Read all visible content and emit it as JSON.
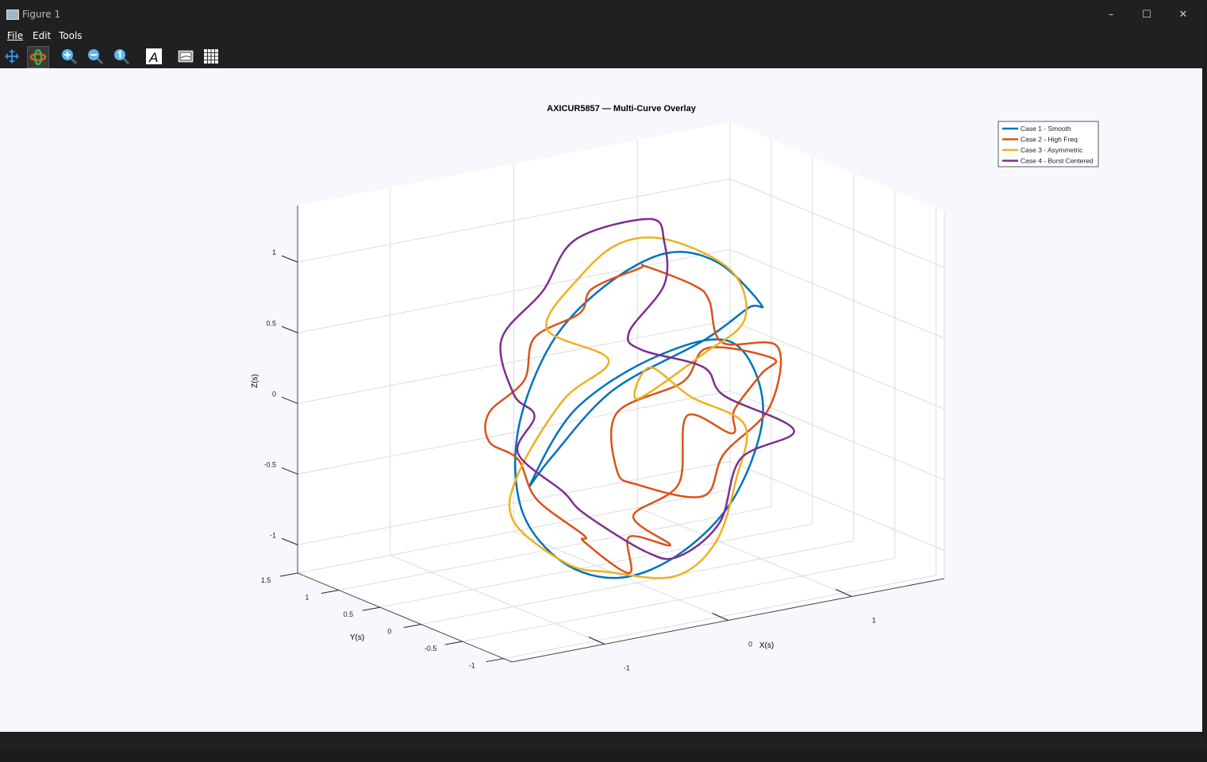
{
  "window": {
    "title": "Figure 1",
    "controls": [
      "minimize",
      "maximize",
      "close"
    ]
  },
  "menu": [
    "File",
    "Edit",
    "Tools"
  ],
  "toolbar": [
    {
      "name": "pan-icon",
      "active": false
    },
    {
      "name": "rotate-3d-icon",
      "active": true
    },
    {
      "name": "zoom-in-icon",
      "active": false
    },
    {
      "name": "zoom-out-icon",
      "active": false
    },
    {
      "name": "zoom-reset-icon",
      "active": false
    },
    {
      "name": "text-annotation-icon",
      "active": false
    },
    {
      "name": "legend-toggle-icon",
      "active": false
    },
    {
      "name": "grid-toggle-icon",
      "active": false
    }
  ],
  "chart_data": {
    "type": "line3d",
    "title": "AXICUR5857 — Multi-Curve Overlay",
    "xlabel": "X(s)",
    "ylabel": "Y(s)",
    "zlabel": "Z(s)",
    "xlim": [
      -1.75,
      1.75
    ],
    "ylim": [
      -1.1,
      1.5
    ],
    "zlim": [
      -1.2,
      1.4
    ],
    "xticks": [
      -1,
      0,
      1
    ],
    "yticks": [
      -1,
      -0.5,
      0,
      0.5,
      1,
      1.5
    ],
    "zticks": [
      -1,
      -0.5,
      0,
      0.5,
      1
    ],
    "xtick_labels": [
      "-1",
      "0",
      "1"
    ],
    "ytick_labels": [
      "-1",
      "-0.5",
      "0",
      "0.5",
      "1",
      "1.5"
    ],
    "ztick_labels": [
      "-1",
      "-0.5",
      "0",
      "0.5",
      "1"
    ],
    "grid": true,
    "legend_placement": "top-right",
    "series": [
      {
        "name": "Case 1 - Smooth",
        "color": "#0072BD",
        "points": [
          [
            1.0,
            0.0,
            0.6
          ],
          [
            0.85,
            0.3,
            0.85
          ],
          [
            0.5,
            0.4,
            0.95
          ],
          [
            0.0,
            0.4,
            0.8
          ],
          [
            -0.5,
            0.3,
            0.5
          ],
          [
            -0.9,
            0.1,
            0.0
          ],
          [
            -1.0,
            -0.1,
            -0.5
          ],
          [
            -0.8,
            -0.3,
            -0.85
          ],
          [
            -0.4,
            -0.4,
            -1.0
          ],
          [
            0.1,
            -0.4,
            -0.9
          ],
          [
            0.6,
            -0.3,
            -0.6
          ],
          [
            0.95,
            -0.1,
            -0.1
          ],
          [
            0.9,
            0.2,
            0.3
          ],
          [
            0.5,
            0.5,
            0.2
          ],
          [
            -0.1,
            0.6,
            -0.1
          ],
          [
            -0.6,
            0.4,
            -0.5
          ],
          [
            -0.7,
            0.0,
            -0.2
          ],
          [
            -0.4,
            -0.3,
            0.3
          ],
          [
            0.2,
            -0.5,
            0.6
          ],
          [
            0.7,
            -0.3,
            0.7
          ]
        ]
      },
      {
        "name": "Case 2 - High Freq",
        "color": "#D95319",
        "points": [
          [
            1.1,
            0.0,
            0.2
          ],
          [
            1.2,
            0.3,
            0.0
          ],
          [
            0.95,
            0.25,
            -0.2
          ],
          [
            1.1,
            0.5,
            -0.45
          ],
          [
            0.8,
            0.6,
            -0.3
          ],
          [
            0.6,
            0.4,
            -0.7
          ],
          [
            0.3,
            0.5,
            -0.9
          ],
          [
            0.4,
            0.2,
            -1.05
          ],
          [
            0.0,
            0.1,
            -0.9
          ],
          [
            -0.2,
            -0.2,
            -1.05
          ],
          [
            -0.5,
            -0.1,
            -0.8
          ],
          [
            -0.7,
            -0.4,
            -0.65
          ],
          [
            -0.95,
            -0.2,
            -0.4
          ],
          [
            -0.9,
            0.1,
            -0.2
          ],
          [
            -1.2,
            0.0,
            0.0
          ],
          [
            -1.0,
            0.3,
            0.1
          ],
          [
            -0.85,
            0.1,
            0.35
          ],
          [
            -0.6,
            0.35,
            0.55
          ],
          [
            -0.4,
            0.1,
            0.75
          ],
          [
            -0.1,
            0.4,
            0.8
          ],
          [
            0.15,
            0.2,
            0.95
          ],
          [
            0.4,
            0.5,
            0.85
          ],
          [
            0.6,
            0.2,
            0.75
          ],
          [
            0.85,
            0.4,
            0.55
          ],
          [
            0.75,
            0.1,
            0.35
          ],
          [
            1.0,
            -0.2,
            0.35
          ],
          [
            0.8,
            -0.4,
            0.0
          ],
          [
            0.5,
            -0.3,
            -0.3
          ],
          [
            0.2,
            -0.5,
            -0.5
          ],
          [
            -0.2,
            -0.3,
            -0.4
          ],
          [
            -0.5,
            -0.5,
            -0.2
          ],
          [
            -0.3,
            -0.2,
            0.1
          ],
          [
            0.1,
            -0.4,
            0.3
          ],
          [
            0.5,
            -0.1,
            0.4
          ]
        ]
      },
      {
        "name": "Case 3 - Asymmetric",
        "color": "#EDB120",
        "points": [
          [
            0.9,
            0.2,
            0.8
          ],
          [
            0.6,
            0.5,
            1.0
          ],
          [
            0.2,
            0.5,
            1.05
          ],
          [
            -0.2,
            0.4,
            0.9
          ],
          [
            -0.6,
            0.2,
            0.65
          ],
          [
            -0.3,
            -0.1,
            0.45
          ],
          [
            -0.8,
            -0.3,
            0.3
          ],
          [
            -1.1,
            -0.2,
            -0.2
          ],
          [
            -1.0,
            0.0,
            -0.6
          ],
          [
            -0.7,
            -0.2,
            -0.9
          ],
          [
            -0.3,
            -0.1,
            -1.05
          ],
          [
            0.1,
            -0.3,
            -1.1
          ],
          [
            0.5,
            -0.2,
            -0.95
          ],
          [
            0.8,
            0.0,
            -0.6
          ],
          [
            1.0,
            0.2,
            -0.3
          ],
          [
            0.7,
            0.4,
            -0.1
          ],
          [
            0.3,
            0.3,
            0.2
          ],
          [
            0.0,
            0.0,
            0.1
          ],
          [
            0.4,
            -0.2,
            0.4
          ],
          [
            0.8,
            -0.1,
            0.55
          ]
        ]
      },
      {
        "name": "Case 4 - Burst Centered",
        "color": "#7E2F8E",
        "points": [
          [
            0.3,
            0.3,
            1.25
          ],
          [
            -0.1,
            0.6,
            1.1
          ],
          [
            -0.5,
            0.4,
            0.85
          ],
          [
            -0.9,
            0.3,
            0.6
          ],
          [
            -1.0,
            0.0,
            0.3
          ],
          [
            -0.7,
            0.2,
            0.05
          ],
          [
            -1.1,
            -0.2,
            -0.05
          ],
          [
            -0.8,
            -0.3,
            -0.35
          ],
          [
            -0.5,
            -0.1,
            -0.6
          ],
          [
            -0.2,
            -0.4,
            -0.85
          ],
          [
            0.2,
            -0.2,
            -1.0
          ],
          [
            0.6,
            -0.1,
            -0.85
          ],
          [
            0.9,
            0.1,
            -0.5
          ],
          [
            1.2,
            -0.1,
            -0.3
          ],
          [
            0.9,
            0.3,
            -0.1
          ],
          [
            0.6,
            0.1,
            0.2
          ],
          [
            0.3,
            0.4,
            0.3
          ],
          [
            0.0,
            0.1,
            0.55
          ],
          [
            0.35,
            0.2,
            0.8
          ],
          [
            0.55,
            0.5,
            1.0
          ]
        ]
      }
    ]
  }
}
